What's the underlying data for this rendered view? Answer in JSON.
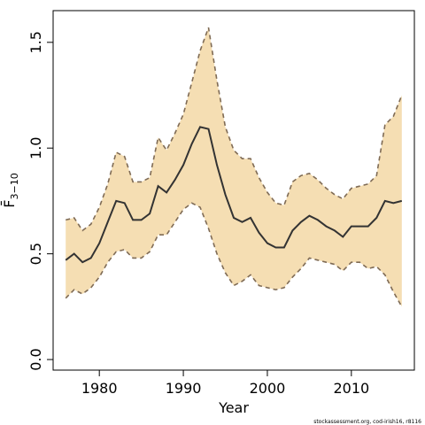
{
  "chart_data": {
    "type": "area",
    "xlabel": "Year",
    "ylabel": "F̄",
    "ylabel_subscript": "3−10",
    "xlim": [
      1974.5,
      2017.5
    ],
    "ylim": [
      -0.05,
      1.65
    ],
    "xticks": [
      1980,
      1990,
      2000,
      2010
    ],
    "yticks": [
      0.0,
      0.5,
      1.0,
      1.5
    ],
    "x": [
      1976,
      1977,
      1978,
      1979,
      1980,
      1981,
      1982,
      1983,
      1984,
      1985,
      1986,
      1987,
      1988,
      1989,
      1990,
      1991,
      1992,
      1993,
      1994,
      1995,
      1996,
      1997,
      1998,
      1999,
      2000,
      2001,
      2002,
      2003,
      2004,
      2005,
      2006,
      2007,
      2008,
      2009,
      2010,
      2011,
      2012,
      2013,
      2014,
      2015,
      2016
    ],
    "series": [
      {
        "role": "upper",
        "values": [
          0.66,
          0.67,
          0.61,
          0.64,
          0.72,
          0.83,
          0.98,
          0.96,
          0.84,
          0.84,
          0.86,
          1.05,
          0.99,
          1.07,
          1.16,
          1.31,
          1.46,
          1.57,
          1.32,
          1.1,
          0.99,
          0.95,
          0.95,
          0.86,
          0.79,
          0.74,
          0.73,
          0.84,
          0.87,
          0.88,
          0.85,
          0.81,
          0.78,
          0.76,
          0.81,
          0.82,
          0.83,
          0.87,
          1.11,
          1.15,
          1.25
        ]
      },
      {
        "role": "estimate",
        "values": [
          0.47,
          0.5,
          0.46,
          0.48,
          0.55,
          0.65,
          0.75,
          0.74,
          0.66,
          0.66,
          0.69,
          0.82,
          0.79,
          0.85,
          0.92,
          1.02,
          1.1,
          1.09,
          0.92,
          0.78,
          0.67,
          0.65,
          0.67,
          0.6,
          0.55,
          0.53,
          0.53,
          0.61,
          0.65,
          0.68,
          0.66,
          0.63,
          0.61,
          0.58,
          0.63,
          0.63,
          0.63,
          0.67,
          0.75,
          0.74,
          0.75
        ]
      },
      {
        "role": "lower",
        "values": [
          0.29,
          0.33,
          0.31,
          0.34,
          0.39,
          0.46,
          0.51,
          0.52,
          0.48,
          0.48,
          0.51,
          0.59,
          0.59,
          0.65,
          0.71,
          0.74,
          0.72,
          0.62,
          0.5,
          0.41,
          0.35,
          0.37,
          0.4,
          0.35,
          0.34,
          0.33,
          0.34,
          0.39,
          0.43,
          0.48,
          0.47,
          0.46,
          0.45,
          0.42,
          0.46,
          0.46,
          0.43,
          0.44,
          0.4,
          0.32,
          0.25
        ]
      }
    ],
    "colors": {
      "band": "#f5deb3",
      "estimate": "#333333",
      "bounds": "#7f6b55",
      "frame": "#000000"
    },
    "grid": false,
    "credit": "stockassessment.org, cod-irish16, r8116"
  }
}
